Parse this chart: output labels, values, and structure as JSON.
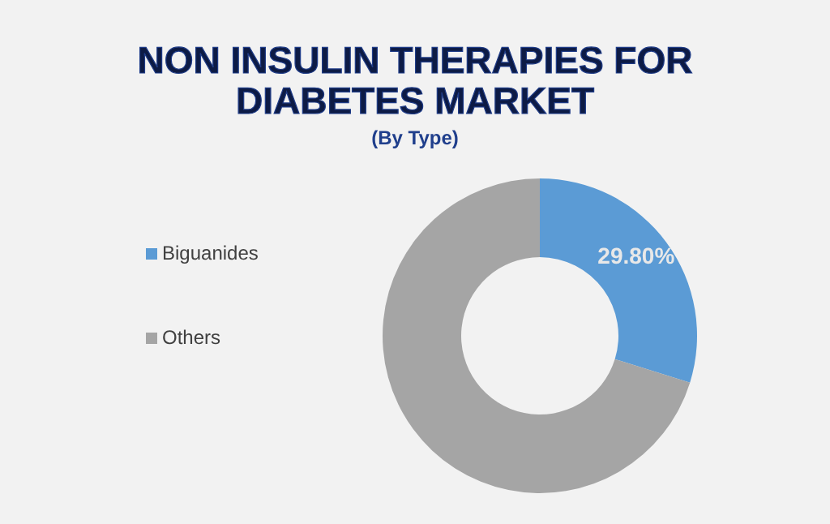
{
  "chart_data": {
    "type": "donut",
    "title": "NON INSULIN THERAPIES FOR DIABETES MARKET",
    "subtitle": "(By Type)",
    "categories": [
      "Biguanides",
      "Others"
    ],
    "values": [
      29.8,
      70.2
    ],
    "colors": [
      "#5b9bd5",
      "#a5a5a5"
    ],
    "value_labels": [
      "29.80%",
      null
    ],
    "legend": "left"
  }
}
